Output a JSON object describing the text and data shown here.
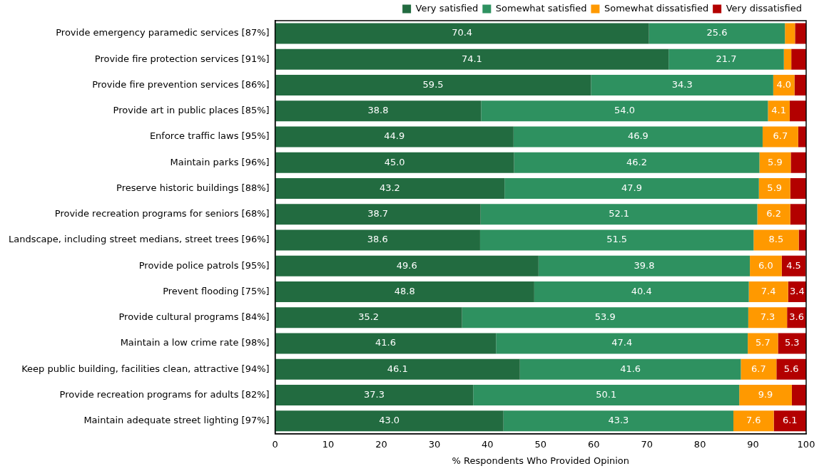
{
  "chart_data": {
    "type": "bar",
    "orientation": "horizontal",
    "stacked": true,
    "xlabel": "% Respondents Who Provided Opinion",
    "xlim": [
      0,
      100
    ],
    "xticks": [
      0,
      10,
      20,
      30,
      40,
      50,
      60,
      70,
      80,
      90,
      100
    ],
    "grid": false,
    "legend": "top right",
    "categories": [
      "Provide emergency paramedic services [87%]",
      "Provide fire protection services [91%]",
      "Provide fire prevention services [86%]",
      "Provide art in public places [85%]",
      "Enforce traffic laws [95%]",
      "Maintain parks [96%]",
      "Preserve historic buildings [88%]",
      "Provide recreation programs for seniors [68%]",
      "Landscape, including street medians, street trees [96%]",
      "Provide police patrols [95%]",
      "Prevent flooding [75%]",
      "Provide cultural programs [84%]",
      "Maintain a low crime rate [98%]",
      "Keep public building, facilities clean, attractive [94%]",
      "Provide recreation programs for adults [82%]",
      "Maintain adequate street lighting [97%]"
    ],
    "series": [
      {
        "name": "Very satisfied",
        "color": "#226b40",
        "values": [
          70.4,
          74.1,
          59.5,
          38.8,
          44.9,
          45.0,
          43.2,
          38.7,
          38.6,
          49.6,
          48.8,
          35.2,
          41.6,
          46.1,
          37.3,
          43.0
        ],
        "value_labels": [
          "70.4",
          "74.1",
          "59.5",
          "38.8",
          "44.9",
          "45.0",
          "43.2",
          "38.7",
          "38.6",
          "49.6",
          "48.8",
          "35.2",
          "41.6",
          "46.1",
          "37.3",
          "43.0"
        ]
      },
      {
        "name": "Somewhat satisfied",
        "color": "#2e9160",
        "values": [
          25.6,
          21.7,
          34.3,
          54.0,
          46.9,
          46.2,
          47.9,
          52.1,
          51.5,
          39.8,
          40.4,
          53.9,
          47.4,
          41.6,
          50.1,
          43.3
        ],
        "value_labels": [
          "25.6",
          "21.7",
          "34.3",
          "54.0",
          "46.9",
          "46.2",
          "47.9",
          "52.1",
          "51.5",
          "39.8",
          "40.4",
          "53.9",
          "47.4",
          "41.6",
          "50.1",
          "43.3"
        ]
      },
      {
        "name": "Somewhat dissatisfied",
        "color": "#ff9900",
        "values": [
          1.9,
          1.4,
          4.0,
          4.1,
          6.7,
          5.9,
          5.9,
          6.2,
          8.5,
          6.0,
          7.4,
          7.3,
          5.7,
          6.7,
          9.9,
          7.6
        ],
        "value_labels": [
          null,
          null,
          "4.0",
          "4.1",
          "6.7",
          "5.9",
          "5.9",
          "6.2",
          "8.5",
          "6.0",
          "7.4",
          "7.3",
          "5.7",
          "6.7",
          "9.9",
          "7.6"
        ]
      },
      {
        "name": "Very dissatisfied",
        "color": "#b30000",
        "values": [
          2.1,
          2.8,
          2.2,
          3.1,
          1.5,
          2.9,
          3.0,
          3.0,
          1.4,
          4.5,
          3.4,
          3.6,
          5.3,
          5.6,
          2.7,
          6.1
        ],
        "value_labels": [
          null,
          null,
          null,
          null,
          null,
          null,
          null,
          null,
          null,
          "4.5",
          "3.4",
          "3.6",
          "5.3",
          "5.6",
          null,
          "6.1"
        ]
      }
    ]
  }
}
